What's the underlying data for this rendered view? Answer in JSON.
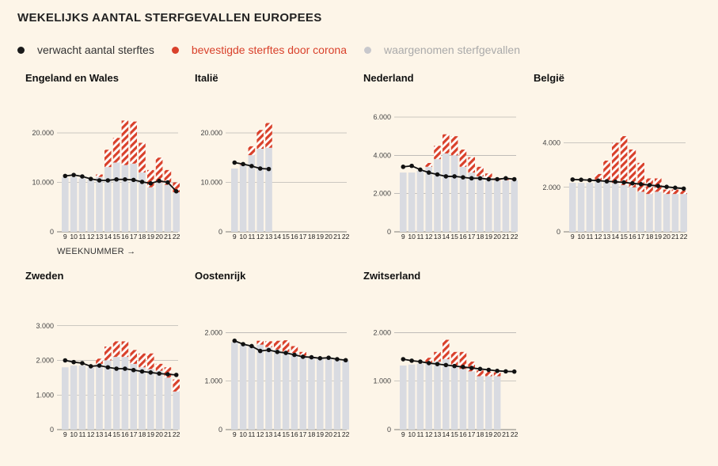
{
  "title": "WEKELIJKS AANTAL STERFGEVALLEN EUROPEES",
  "legend": [
    {
      "label": "verwacht aantal sterftes",
      "color": "#1a1a1a"
    },
    {
      "label": "bevestigde sterftes door corona",
      "color": "#d9412b"
    },
    {
      "label": "waargenomen sterfgevallen",
      "color": "#c8c8cc"
    }
  ],
  "axis_note": "WEEKNUMMER →",
  "colors": {
    "observed": "#d9dbe1",
    "covid": "#d9412b",
    "expected": "#111111",
    "grid": "#9a9a9a"
  },
  "chart_data": [
    {
      "type": "bar+line",
      "title": "Engeland en Wales",
      "weeks": [
        "9",
        "10",
        "11",
        "12",
        "13",
        "14",
        "15",
        "16",
        "17",
        "18",
        "19",
        "20",
        "21",
        "22"
      ],
      "ylim": [
        0,
        24000
      ],
      "yticks": [
        0,
        10000,
        20000
      ],
      "yticklabels": [
        "0",
        "10.000",
        "20.000"
      ],
      "observed": [
        11000,
        11100,
        10800,
        10600,
        11100,
        13100,
        14000,
        13500,
        13800,
        12000,
        9000,
        10000,
        9500,
        8000
      ],
      "covid": [
        0,
        0,
        0,
        100,
        500,
        3500,
        5000,
        9000,
        8500,
        6000,
        3500,
        5000,
        3000,
        2000
      ],
      "expected": [
        11300,
        11500,
        11200,
        10700,
        10400,
        10400,
        10600,
        10600,
        10500,
        10100,
        9800,
        10300,
        10000,
        8200
      ]
    },
    {
      "type": "bar+line",
      "title": "Italië",
      "weeks": [
        "9",
        "10",
        "11",
        "12",
        "13",
        "14",
        "15",
        "16",
        "17",
        "18",
        "19",
        "20",
        "21",
        "22"
      ],
      "ylim": [
        0,
        24000
      ],
      "yticks": [
        0,
        10000,
        20000
      ],
      "yticklabels": [
        "0",
        "10.000",
        "20.000"
      ],
      "observed": [
        12800,
        13500,
        15500,
        16800,
        17000,
        null,
        null,
        null,
        null,
        null,
        null,
        null,
        null,
        null
      ],
      "covid": [
        0,
        100,
        1800,
        3800,
        5000,
        null,
        null,
        null,
        null,
        null,
        null,
        null,
        null,
        null
      ],
      "expected": [
        14000,
        13700,
        13300,
        12800,
        12700,
        null,
        null,
        null,
        null,
        null,
        null,
        null,
        null,
        null
      ]
    },
    {
      "type": "bar+line",
      "title": "Nederland",
      "weeks": [
        "9",
        "10",
        "11",
        "12",
        "13",
        "14",
        "15",
        "16",
        "17",
        "18",
        "19",
        "20",
        "21",
        "22"
      ],
      "ylim": [
        0,
        6000
      ],
      "yticks": [
        0,
        2000,
        4000,
        6000
      ],
      "yticklabels": [
        "0",
        "2.000",
        "4.000",
        "6.000"
      ],
      "observed": [
        3100,
        3100,
        3200,
        3400,
        3800,
        4100,
        4000,
        3400,
        3100,
        2900,
        2800,
        2700,
        2700,
        2700
      ],
      "covid": [
        0,
        0,
        0,
        200,
        700,
        1000,
        1000,
        900,
        800,
        500,
        250,
        100,
        50,
        50
      ],
      "expected": [
        3400,
        3450,
        3250,
        3100,
        3000,
        2900,
        2900,
        2850,
        2800,
        2800,
        2750,
        2750,
        2800,
        2750
      ]
    },
    {
      "type": "bar+line",
      "title": "België",
      "weeks": [
        "9",
        "10",
        "11",
        "12",
        "13",
        "14",
        "15",
        "16",
        "17",
        "18",
        "19",
        "20",
        "21",
        "22"
      ],
      "ylim": [
        0,
        4800
      ],
      "yticks": [
        0,
        2000,
        4000
      ],
      "yticklabels": [
        "0",
        "2.000",
        "4.000"
      ],
      "observed": [
        2200,
        2200,
        2200,
        2300,
        2300,
        2200,
        2100,
        2000,
        1800,
        1700,
        1800,
        1700,
        1700,
        1700
      ],
      "covid": [
        0,
        0,
        0,
        300,
        900,
        1800,
        2200,
        1700,
        1300,
        700,
        600,
        200,
        200,
        150
      ],
      "expected": [
        2350,
        2340,
        2320,
        2300,
        2270,
        2250,
        2220,
        2180,
        2140,
        2100,
        2060,
        2020,
        1980,
        1940
      ]
    },
    {
      "type": "bar+line",
      "title": "Zweden",
      "weeks": [
        "9",
        "10",
        "11",
        "12",
        "13",
        "14",
        "15",
        "16",
        "17",
        "18",
        "19",
        "20",
        "21",
        "22"
      ],
      "ylim": [
        0,
        3200
      ],
      "yticks": [
        0,
        1000,
        2000,
        3000
      ],
      "yticklabels": [
        "0",
        "1.000",
        "2.000",
        "3.000"
      ],
      "observed": [
        1800,
        1850,
        1850,
        1800,
        1900,
        2000,
        2100,
        2100,
        1900,
        1800,
        1750,
        1700,
        1500,
        1100
      ],
      "covid": [
        0,
        0,
        0,
        50,
        150,
        400,
        450,
        450,
        400,
        400,
        450,
        200,
        300,
        350
      ],
      "expected": [
        2000,
        1950,
        1920,
        1830,
        1850,
        1800,
        1760,
        1760,
        1720,
        1680,
        1650,
        1620,
        1600,
        1580
      ]
    },
    {
      "type": "bar+line",
      "title": "Oostenrijk",
      "weeks": [
        "9",
        "10",
        "11",
        "12",
        "13",
        "14",
        "15",
        "16",
        "17",
        "18",
        "19",
        "20",
        "21",
        "22"
      ],
      "ylim": [
        0,
        2200
      ],
      "yticks": [
        0,
        1000,
        2000
      ],
      "yticklabels": [
        "0",
        "1.000",
        "2.000"
      ],
      "observed": [
        1800,
        1750,
        1720,
        1750,
        1700,
        1650,
        1600,
        1580,
        1520,
        1480,
        1460,
        1460,
        1450,
        1420
      ],
      "covid": [
        0,
        0,
        0,
        80,
        120,
        180,
        240,
        140,
        80,
        30,
        20,
        10,
        0,
        0
      ],
      "expected": [
        1830,
        1760,
        1720,
        1620,
        1640,
        1600,
        1580,
        1540,
        1500,
        1490,
        1470,
        1480,
        1450,
        1430
      ]
    },
    {
      "type": "bar+line",
      "title": "Zwitserland",
      "weeks": [
        "9",
        "10",
        "11",
        "12",
        "13",
        "14",
        "15",
        "16",
        "17",
        "18",
        "19",
        "20",
        "21",
        "22"
      ],
      "ylim": [
        0,
        2200
      ],
      "yticks": [
        0,
        1000,
        2000
      ],
      "yticklabels": [
        "0",
        "1.000",
        "2.000"
      ],
      "observed": [
        1320,
        1340,
        1360,
        1380,
        1400,
        1450,
        1300,
        1250,
        1200,
        1100,
        1100,
        1100,
        0,
        0
      ],
      "covid": [
        0,
        0,
        0,
        100,
        200,
        400,
        300,
        350,
        200,
        120,
        90,
        80,
        0,
        0
      ],
      "expected": [
        1450,
        1420,
        1400,
        1370,
        1350,
        1330,
        1310,
        1290,
        1270,
        1250,
        1230,
        1210,
        1200,
        1195
      ]
    }
  ]
}
